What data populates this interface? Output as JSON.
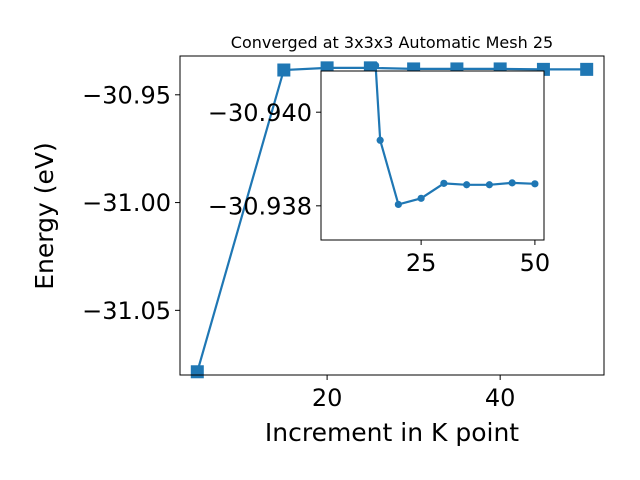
{
  "chart_data": [
    {
      "type": "line",
      "title": "Converged at 3x3x3 Automatic Mesh 25",
      "xlabel": "Increment in K point",
      "ylabel": "Energy (eV)",
      "xlim": [
        3,
        52
      ],
      "ylim": [
        -31.08,
        -30.932
      ],
      "xticks": [
        20,
        40
      ],
      "yticks": [
        -30.95,
        -31.0,
        -31.05
      ],
      "ytick_labels": [
        "−30.95",
        "−31.00",
        "−31.05"
      ],
      "grid": false,
      "series": [
        {
          "color": "#1f77b4",
          "marker": "square",
          "x": [
            5,
            15,
            20,
            25,
            30,
            35,
            40,
            45,
            50
          ],
          "y": [
            -31.0785,
            -30.9385,
            -30.9375,
            -30.9375,
            -30.938,
            -30.938,
            -30.938,
            -30.9382,
            -30.9382
          ]
        }
      ]
    },
    {
      "type": "line",
      "inset": true,
      "xlim": [
        3,
        52
      ],
      "ylim": [
        -30.93727,
        -30.94088
      ],
      "xticks": [
        25,
        50
      ],
      "yticks": [
        -30.94,
        -30.938
      ],
      "ytick_labels": [
        "−30.940",
        "−30.938"
      ],
      "grid": false,
      "series": [
        {
          "color": "#1f77b4",
          "marker": "circle",
          "x": [
            15,
            16,
            20,
            25,
            30,
            35,
            40,
            45,
            50
          ],
          "y": [
            -30.941,
            -30.9394,
            -30.93803,
            -30.93816,
            -30.93848,
            -30.93845,
            -30.93845,
            -30.93849,
            -30.93847
          ]
        }
      ]
    }
  ]
}
